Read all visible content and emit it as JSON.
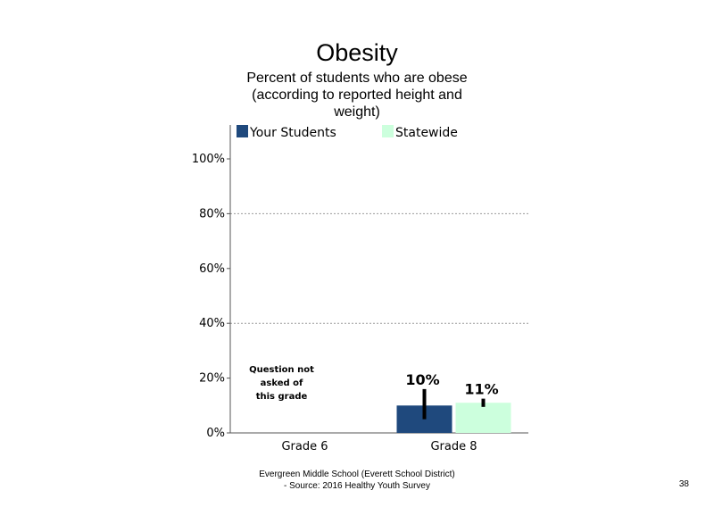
{
  "title": "Obesity",
  "subtitle": "Percent of students who are obese (according to reported height and weight)",
  "footer": {
    "line1": "Evergreen Middle School (Everett School District)",
    "line2": "- Source: 2016 Healthy Youth Survey"
  },
  "page_number": "38",
  "chart_data": {
    "type": "bar",
    "categories": [
      "Grade 6",
      "Grade 8"
    ],
    "series": [
      {
        "name": "Your Students",
        "color": "#1f497d",
        "values": [
          null,
          10
        ],
        "labels": [
          "",
          "10%"
        ],
        "error_low": [
          null,
          5
        ],
        "error_high": [
          null,
          16
        ]
      },
      {
        "name": "Statewide",
        "color": "#ccffdd",
        "values": [
          null,
          11
        ],
        "labels": [
          "",
          "11%"
        ],
        "error_low": [
          null,
          9.5
        ],
        "error_high": [
          null,
          12.5
        ]
      }
    ],
    "ylim": [
      0,
      100
    ],
    "yticks": [
      "0%",
      "20%",
      "40%",
      "60%",
      "80%",
      "100%"
    ],
    "grid": "dotted",
    "legend": "top",
    "annotations": [
      {
        "category": "Grade 6",
        "lines": [
          "Question not",
          "asked of",
          "this grade"
        ]
      }
    ]
  }
}
